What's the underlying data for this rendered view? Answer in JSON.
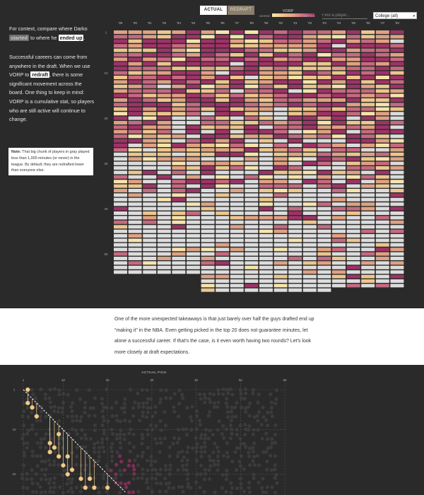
{
  "controls": {
    "actual_label": "ACTUAL",
    "redraft_label": "REDRAFT",
    "legend_title": "VORP",
    "legend_worse": "WORSE",
    "legend_better": "BETTER",
    "search_placeholder": "Find a player...",
    "college_selected": "College (all)"
  },
  "sidebar": {
    "p1_a": "For context, compare where Darko ",
    "p1_chip1": "started",
    "p1_b": " to where he ",
    "p1_chip2": "ended up",
    "p1_c": ".",
    "p2_a": "Successful careers can come from anywhere in the draft. When we use VORP to ",
    "p2_chip": "redraft",
    "p2_b": ", there is some significant movement across the board. One thing to keep in mind: VORP is a cumulative stat, so players who are still active will continue to change.",
    "note_label": "Note:",
    "note_text": " That big chunk of players in gray played less than 1,000 minutes (or never) in the league. By default, they are redrafted lower than everyone else."
  },
  "mid_text": "One of the more unexpected takeaways is that just barely over half the guys drafted end up “making it” in the NBA. Even getting picked in the top 20 does not guarantee minutes, let alone a successful career. If that's the case, is it even worth having two rounds? Let’s look more closely at draft expectations.",
  "colors": {
    "scale": [
      "#f6e4ad",
      "#ecc68e",
      "#dfa184",
      "#c56a80",
      "#9e3366"
    ],
    "gray": "#dcdcdc",
    "background": "#2a2a2a"
  },
  "chart_data": [
    {
      "type": "heatmap",
      "title": "",
      "columns": [
        "'89",
        "'90",
        "'91",
        "'92",
        "'93",
        "'94",
        "'95",
        "'96",
        "'97",
        "'98",
        "'99",
        "'00",
        "'01",
        "'02",
        "'03",
        "'04",
        "'05",
        "'06",
        "'07",
        "'08"
      ],
      "y_tick_labels": [
        1,
        10,
        20,
        30,
        40,
        50
      ],
      "picks_per_draft": [
        54,
        54,
        54,
        54,
        54,
        54,
        58,
        58,
        58,
        58,
        58,
        58,
        58,
        58,
        58,
        57,
        57,
        57,
        57,
        57
      ],
      "legend": "VORP scale from WORSE to BETTER; gray = under 1,000 minutes"
    },
    {
      "type": "scatter",
      "xlabel": "ACTUAL PICK",
      "x_tick_labels": [
        1,
        10,
        20,
        30,
        40,
        50,
        60
      ],
      "y_tick_labels": [
        1,
        10,
        20
      ],
      "xlim": [
        1,
        60
      ],
      "ylim": [
        1,
        23
      ],
      "highlighted_points": [
        {
          "actual": 2,
          "redraft": 1
        },
        {
          "actual": 2,
          "redraft": 4
        },
        {
          "actual": 3,
          "redraft": 5
        },
        {
          "actual": 4,
          "redraft": 7
        },
        {
          "actual": 7,
          "redraft": 13
        },
        {
          "actual": 7,
          "redraft": 15
        },
        {
          "actual": 8,
          "redraft": 14
        },
        {
          "actual": 9,
          "redraft": 11
        },
        {
          "actual": 9,
          "redraft": 16
        },
        {
          "actual": 10,
          "redraft": 18
        },
        {
          "actual": 11,
          "redraft": 16
        },
        {
          "actual": 11,
          "redraft": 20
        },
        {
          "actual": 12,
          "redraft": 19
        },
        {
          "actual": 14,
          "redraft": 21
        },
        {
          "actual": 15,
          "redraft": 23
        },
        {
          "actual": 16,
          "redraft": 21
        },
        {
          "actual": 17,
          "redraft": 23
        },
        {
          "actual": 20,
          "redraft": 23
        }
      ]
    }
  ]
}
